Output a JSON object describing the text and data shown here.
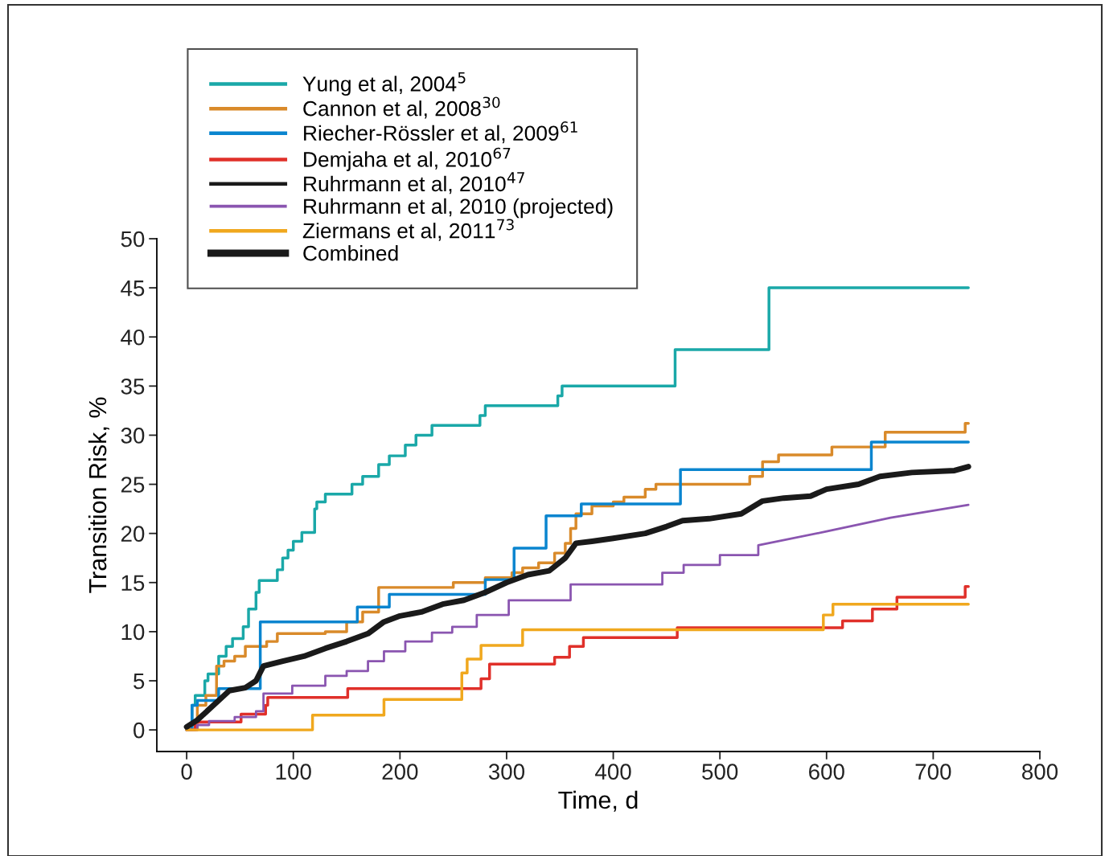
{
  "chart_data": {
    "type": "step",
    "xlabel": "Time, d",
    "ylabel": "Transition Risk, %",
    "xlim": [
      -28,
      800
    ],
    "ylim": [
      -2.2,
      50
    ],
    "xticks": [
      0,
      100,
      200,
      300,
      400,
      500,
      600,
      700,
      800
    ],
    "yticks": [
      0,
      5,
      10,
      15,
      20,
      25,
      30,
      35,
      40,
      45,
      50
    ],
    "grid": false,
    "legend": "top left",
    "line_style": "solid",
    "marker": "none",
    "series": [
      {
        "name": "Yung et al, 2004$^{5}$",
        "color": "#1aa8a8",
        "x": [
          0,
          5,
          8,
          17,
          20,
          30,
          37,
          43,
          53,
          58,
          65,
          68,
          85,
          90,
          95,
          100,
          108,
          120,
          122,
          130,
          155,
          165,
          180,
          190,
          205,
          215,
          230,
          275,
          280,
          348,
          352,
          458,
          546,
          733
        ],
        "values": [
          0,
          2.5,
          3.5,
          5,
          5.7,
          7.5,
          8.5,
          9.3,
          10.5,
          12.3,
          14,
          15.2,
          16.3,
          17.5,
          18.3,
          19.2,
          20.1,
          22.5,
          23.2,
          24,
          25,
          25.8,
          27,
          27.9,
          29,
          30,
          31,
          32,
          33,
          34,
          35,
          38.7,
          45,
          45
        ]
      },
      {
        "name": "Cannon et al, 2008$^{30}$",
        "color": "#d98a2a",
        "x": [
          0,
          10,
          18,
          28,
          35,
          45,
          55,
          75,
          85,
          130,
          150,
          165,
          180,
          250,
          280,
          305,
          315,
          330,
          345,
          355,
          360,
          365,
          380,
          400,
          410,
          430,
          440,
          528,
          540,
          555,
          605,
          655,
          730,
          733
        ],
        "values": [
          0,
          2.5,
          3.5,
          6.5,
          7,
          7.5,
          8.5,
          9,
          9.8,
          10,
          11,
          12,
          14.5,
          15,
          15.5,
          16,
          16.5,
          17,
          18,
          19,
          20.5,
          22,
          22.8,
          23.2,
          23.7,
          24.5,
          25,
          25.8,
          27.3,
          28,
          28.8,
          30.3,
          31.2,
          31.2
        ]
      },
      {
        "name": "Riecher-Rössler et al, 2009$^{61}$",
        "color": "#0a85cf",
        "x": [
          0,
          5,
          10,
          30,
          69,
          160,
          190,
          280,
          307,
          337,
          370,
          463,
          642,
          733
        ],
        "values": [
          0,
          2.5,
          3,
          4.2,
          11,
          12.5,
          13.8,
          15.3,
          18.5,
          21.8,
          23,
          26.5,
          29.3,
          29.3
        ]
      },
      {
        "name": "Demjaha et al, 2010$^{67}$",
        "color": "#e0302a",
        "x": [
          0,
          8,
          51,
          74,
          76,
          151,
          276,
          284,
          345,
          359,
          372,
          460,
          615,
          643,
          666,
          730,
          733
        ],
        "values": [
          0,
          0.8,
          1.6,
          2.5,
          3.3,
          4.2,
          5.2,
          6.7,
          7.4,
          8.5,
          9.4,
          10.4,
          11.1,
          12.3,
          13.5,
          14.6,
          14.6
        ]
      },
      {
        "name": "Ruhrmann et al, 2010$^{47}$",
        "color": "#1a1a1a"
      },
      {
        "name": "Ruhrmann et al, 2010 (projected)",
        "color": "#8a55b0",
        "type": "line",
        "x": [
          0,
          10,
          10,
          21,
          21,
          45,
          45,
          65,
          65,
          72,
          72,
          99,
          99,
          130,
          130,
          150,
          150,
          170,
          170,
          185,
          185,
          205,
          205,
          230,
          230,
          249,
          249,
          272,
          272,
          302,
          302,
          360,
          360,
          446,
          446,
          466,
          466,
          500,
          500,
          536,
          536,
          600,
          660,
          733
        ],
        "values": [
          0,
          0,
          0.5,
          0.5,
          0.9,
          0.9,
          1.3,
          1.3,
          1.9,
          1.9,
          3.7,
          3.7,
          4.5,
          4.5,
          5.5,
          5.5,
          6,
          6,
          7,
          7,
          8,
          8,
          9,
          9,
          9.9,
          9.9,
          10.5,
          10.5,
          11.7,
          11.7,
          13.2,
          13.2,
          14.8,
          14.8,
          16,
          16,
          16.8,
          16.8,
          17.8,
          17.8,
          18.8,
          20.2,
          21.6,
          22.9
        ]
      },
      {
        "name": "Ziermans et al, 2011$^{73}$",
        "color": "#f0a81e",
        "x": [
          0,
          118,
          185,
          258,
          263,
          276,
          315,
          597,
          606,
          733
        ],
        "values": [
          0,
          1.5,
          3.1,
          5.8,
          7.2,
          8.6,
          10.2,
          11.7,
          12.8,
          12.8
        ]
      },
      {
        "name": "Combined",
        "color": "#1a1a1a",
        "type": "line",
        "x": [
          0,
          10,
          20,
          30,
          40,
          55,
          65,
          72,
          90,
          110,
          130,
          150,
          170,
          185,
          200,
          220,
          240,
          260,
          280,
          300,
          320,
          340,
          355,
          365,
          380,
          400,
          430,
          450,
          465,
          490,
          520,
          540,
          560,
          585,
          600,
          630,
          650,
          680,
          720,
          733
        ],
        "values": [
          0.3,
          1,
          2,
          3,
          4,
          4.3,
          5,
          6.5,
          7,
          7.5,
          8.3,
          9,
          9.8,
          11,
          11.6,
          12,
          12.8,
          13.2,
          14,
          15,
          15.8,
          16.2,
          17.5,
          19,
          19.2,
          19.5,
          20,
          20.7,
          21.3,
          21.5,
          22,
          23.3,
          23.6,
          23.8,
          24.5,
          25,
          25.8,
          26.2,
          26.4,
          26.8
        ]
      }
    ]
  }
}
